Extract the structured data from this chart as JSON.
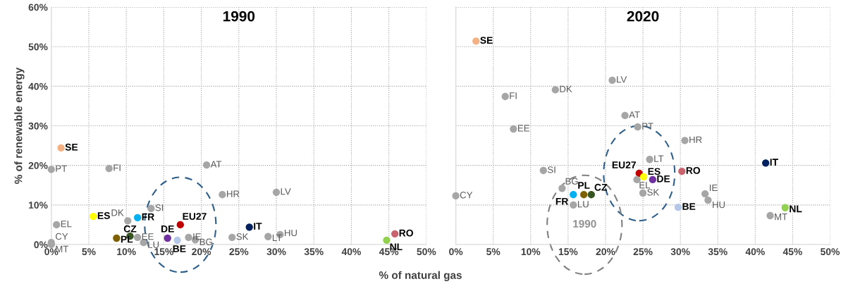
{
  "chart_data": [
    {
      "type": "scatter",
      "title": "1990",
      "ylabel": "% of renewable energy",
      "xlabel": "% of natural gas",
      "xlim": [
        0,
        50
      ],
      "xticks": [
        {
          "value": 0,
          "label": "0%"
        },
        {
          "value": 5,
          "label": "5%"
        },
        {
          "value": 10,
          "label": "10%"
        },
        {
          "value": 15,
          "label": "15%"
        },
        {
          "value": 20,
          "label": "20%"
        },
        {
          "value": 25,
          "label": "25%"
        },
        {
          "value": 30,
          "label": "30%"
        },
        {
          "value": 35,
          "label": "35%"
        },
        {
          "value": 40,
          "label": "40%"
        },
        {
          "value": 45,
          "label": "45%"
        },
        {
          "value": 50,
          "label": "50%"
        }
      ],
      "ylim": [
        0,
        60
      ],
      "yticks": [
        {
          "value": 0,
          "label": "0%"
        },
        {
          "value": 10,
          "label": "10%"
        },
        {
          "value": 20,
          "label": "20%"
        },
        {
          "value": 30,
          "label": "30%"
        },
        {
          "value": 40,
          "label": "40%"
        },
        {
          "value": 50,
          "label": "50%"
        },
        {
          "value": 60,
          "label": "60%"
        }
      ],
      "grid": true,
      "marker": "circle",
      "series": [
        {
          "name": "SE",
          "color": "#f4b183",
          "x": [
            1.3
          ],
          "values": [
            24.4
          ]
        },
        {
          "name": "PT",
          "color": "#a6a6a6",
          "x": [
            0
          ],
          "values": [
            19.0
          ]
        },
        {
          "name": "FI",
          "color": "#a6a6a6",
          "x": [
            7.7
          ],
          "values": [
            19.2
          ]
        },
        {
          "name": "AT",
          "color": "#a6a6a6",
          "x": [
            20.7
          ],
          "values": [
            20.1
          ]
        },
        {
          "name": "HR",
          "color": "#a6a6a6",
          "x": [
            22.8
          ],
          "values": [
            12.6
          ]
        },
        {
          "name": "LV",
          "color": "#a6a6a6",
          "x": [
            30.0
          ],
          "values": [
            13.2
          ]
        },
        {
          "name": "SI",
          "color": "#a6a6a6",
          "x": [
            13.3
          ],
          "values": [
            9.1
          ]
        },
        {
          "name": "ES",
          "color": "#ffff00",
          "x": [
            5.6
          ],
          "values": [
            7.1
          ]
        },
        {
          "name": "DK",
          "color": "#a6a6a6",
          "x": [
            10.2
          ],
          "values": [
            6.0
          ]
        },
        {
          "name": "FR",
          "color": "#00b0f0",
          "x": [
            11.5
          ],
          "values": [
            6.8
          ]
        },
        {
          "name": "EL",
          "color": "#a6a6a6",
          "x": [
            0.7
          ],
          "values": [
            5.0
          ]
        },
        {
          "name": "EU27",
          "color": "#c00000",
          "x": [
            17.2
          ],
          "values": [
            5.0
          ]
        },
        {
          "name": "IT",
          "color": "#002060",
          "x": [
            26.4
          ],
          "values": [
            4.4
          ]
        },
        {
          "name": "CZ",
          "color": "#375623",
          "x": [
            10.5
          ],
          "values": [
            2.1
          ]
        },
        {
          "name": "PL",
          "color": "#7f6000",
          "x": [
            8.7
          ],
          "values": [
            1.6
          ]
        },
        {
          "name": "EE",
          "color": "#a6a6a6",
          "x": [
            11.5
          ],
          "values": [
            1.8
          ]
        },
        {
          "name": "LU",
          "color": "#a6a6a6",
          "x": [
            12.3
          ],
          "values": [
            0.5
          ]
        },
        {
          "name": "DE",
          "color": "#7030a0",
          "x": [
            15.5
          ],
          "values": [
            1.6
          ]
        },
        {
          "name": "BE",
          "color": "#b4c7e7",
          "x": [
            16.8
          ],
          "values": [
            1.1
          ]
        },
        {
          "name": "IE",
          "color": "#a6a6a6",
          "x": [
            18.3
          ],
          "values": [
            1.8
          ]
        },
        {
          "name": "BG",
          "color": "#a6a6a6",
          "x": [
            19.2
          ],
          "values": [
            1.2
          ]
        },
        {
          "name": "SK",
          "color": "#a6a6a6",
          "x": [
            24.1
          ],
          "values": [
            1.8
          ]
        },
        {
          "name": "LT",
          "color": "#a6a6a6",
          "x": [
            28.9
          ],
          "values": [
            2.0
          ]
        },
        {
          "name": "HU",
          "color": "#a6a6a6",
          "x": [
            30.5
          ],
          "values": [
            2.5
          ]
        },
        {
          "name": "RO",
          "color": "#c9636e",
          "x": [
            45.8
          ],
          "values": [
            2.7
          ]
        },
        {
          "name": "NL",
          "color": "#92d050",
          "x": [
            44.7
          ],
          "values": [
            1.1
          ]
        },
        {
          "name": "CY",
          "color": "#a6a6a6",
          "x": [
            0
          ],
          "values": [
            0.5
          ]
        },
        {
          "name": "MT",
          "color": "#a6a6a6",
          "x": [
            0
          ],
          "values": [
            0.0
          ]
        }
      ]
    },
    {
      "type": "scatter",
      "title": "2020",
      "annotations": [
        "1990"
      ],
      "tick_labels": "x",
      "xlim": [
        0,
        50
      ],
      "xticks": [
        {
          "value": 0,
          "label": "0%"
        },
        {
          "value": 5,
          "label": "5%"
        },
        {
          "value": 10,
          "label": "10%"
        },
        {
          "value": 15,
          "label": "15%"
        },
        {
          "value": 20,
          "label": "20%"
        },
        {
          "value": 25,
          "label": "25%"
        },
        {
          "value": 30,
          "label": "30%"
        },
        {
          "value": 35,
          "label": "35%"
        },
        {
          "value": 40,
          "label": "40%"
        },
        {
          "value": 45,
          "label": "45%"
        },
        {
          "value": 50,
          "label": "50%"
        }
      ],
      "ylim": [
        0,
        60
      ],
      "yticks": [
        {
          "value": 0,
          "label": null
        },
        {
          "value": 10,
          "label": null
        },
        {
          "value": 20,
          "label": null
        },
        {
          "value": 30,
          "label": null
        },
        {
          "value": 40,
          "label": null
        },
        {
          "value": 50,
          "label": null
        },
        {
          "value": 60,
          "label": null
        }
      ],
      "grid": true,
      "marker": "circle",
      "series": [
        {
          "name": "SE",
          "color": "#f4b183",
          "x": [
            2.7
          ],
          "values": [
            51.4
          ]
        },
        {
          "name": "FI",
          "color": "#a6a6a6",
          "x": [
            6.6
          ],
          "values": [
            37.4
          ]
        },
        {
          "name": "DK",
          "color": "#a6a6a6",
          "x": [
            13.3
          ],
          "values": [
            39.1
          ]
        },
        {
          "name": "LV",
          "color": "#a6a6a6",
          "x": [
            20.9
          ],
          "values": [
            41.5
          ]
        },
        {
          "name": "EE",
          "color": "#a6a6a6",
          "x": [
            7.7
          ],
          "values": [
            29.2
          ]
        },
        {
          "name": "AT",
          "color": "#a6a6a6",
          "x": [
            22.6
          ],
          "values": [
            32.6
          ]
        },
        {
          "name": "PT",
          "color": "#a6a6a6",
          "x": [
            24.3
          ],
          "values": [
            29.7
          ]
        },
        {
          "name": "HR",
          "color": "#a6a6a6",
          "x": [
            30.6
          ],
          "values": [
            26.3
          ]
        },
        {
          "name": "LT",
          "color": "#a6a6a6",
          "x": [
            25.9
          ],
          "values": [
            21.5
          ]
        },
        {
          "name": "IT",
          "color": "#002060",
          "x": [
            41.4
          ],
          "values": [
            20.6
          ]
        },
        {
          "name": "RO",
          "color": "#c9636e",
          "x": [
            30.2
          ],
          "values": [
            18.5
          ]
        },
        {
          "name": "EU27",
          "color": "#c00000",
          "x": [
            24.5
          ],
          "values": [
            18.0
          ]
        },
        {
          "name": "ES",
          "color": "#ffff00",
          "x": [
            25.1
          ],
          "values": [
            17.1
          ]
        },
        {
          "name": "DE",
          "color": "#7030a0",
          "x": [
            26.3
          ],
          "values": [
            16.4
          ]
        },
        {
          "name": "EL",
          "color": "#a6a6a6",
          "x": [
            24.2
          ],
          "values": [
            16.4
          ]
        },
        {
          "name": "SK",
          "color": "#a6a6a6",
          "x": [
            25.0
          ],
          "values": [
            13.0
          ]
        },
        {
          "name": "SI",
          "color": "#a6a6a6",
          "x": [
            11.7
          ],
          "values": [
            18.7
          ]
        },
        {
          "name": "BG",
          "color": "#a6a6a6",
          "x": [
            14.2
          ],
          "values": [
            14.2
          ]
        },
        {
          "name": "FR",
          "color": "#00b0f0",
          "x": [
            15.7
          ],
          "values": [
            12.6
          ]
        },
        {
          "name": "PL",
          "color": "#7f6000",
          "x": [
            17.1
          ],
          "values": [
            12.6
          ]
        },
        {
          "name": "CZ",
          "color": "#375623",
          "x": [
            18.1
          ],
          "values": [
            12.6
          ]
        },
        {
          "name": "LU",
          "color": "#a6a6a6",
          "x": [
            15.7
          ],
          "values": [
            10.0
          ]
        },
        {
          "name": "CY",
          "color": "#a6a6a6",
          "x": [
            0
          ],
          "values": [
            12.3
          ]
        },
        {
          "name": "IE",
          "color": "#a6a6a6",
          "x": [
            33.3
          ],
          "values": [
            12.8
          ]
        },
        {
          "name": "HU",
          "color": "#a6a6a6",
          "x": [
            33.7
          ],
          "values": [
            11.2
          ]
        },
        {
          "name": "BE",
          "color": "#b4c7e7",
          "x": [
            29.7
          ],
          "values": [
            9.4
          ]
        },
        {
          "name": "NL",
          "color": "#92d050",
          "x": [
            44.0
          ],
          "values": [
            9.3
          ]
        },
        {
          "name": "MT",
          "color": "#a6a6a6",
          "x": [
            42.0
          ],
          "values": [
            7.3
          ]
        }
      ]
    }
  ]
}
